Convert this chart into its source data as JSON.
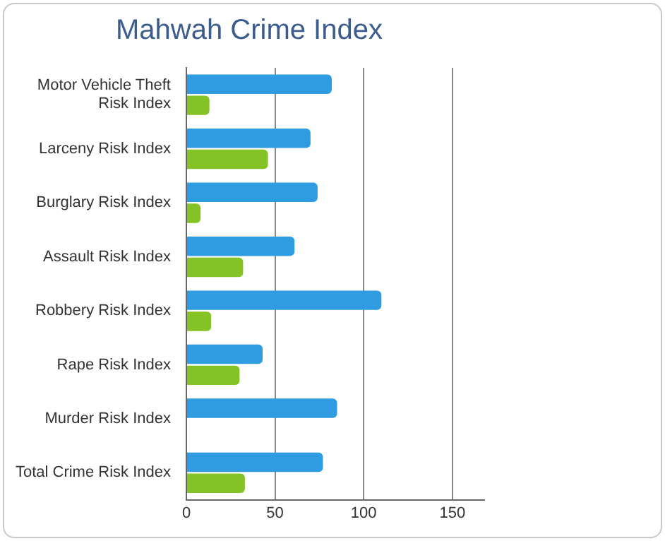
{
  "chart_data": {
    "type": "bar",
    "orientation": "horizontal",
    "title": "Mahwah Crime Index",
    "categories": [
      "Motor Vehicle Theft Risk Index",
      "Larceny Risk Index",
      "Burglary Risk Index",
      "Assault Risk Index",
      "Robbery Risk Index",
      "Rape Risk Index",
      "Murder Risk Index",
      "Total Crime Risk Index"
    ],
    "series": [
      {
        "color": "#2f9be0",
        "values": [
          82,
          70,
          74,
          61,
          110,
          43,
          85,
          77
        ]
      },
      {
        "color": "#84c225",
        "values": [
          13,
          46,
          8,
          32,
          14,
          30,
          null,
          33
        ]
      }
    ],
    "xlim": [
      0,
      168
    ],
    "xticks": [
      0,
      50,
      100,
      150
    ],
    "grid": "x",
    "legend": false
  }
}
